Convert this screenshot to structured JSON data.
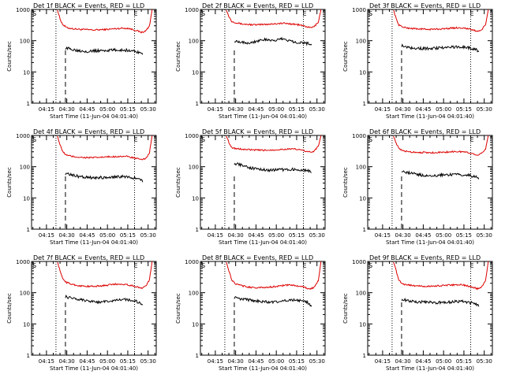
{
  "figure": {
    "xlabel": "Start Time (11-Jun-04 04:01:40)",
    "ylabel": "Counts/sec",
    "y_ticks": [
      "1",
      "10",
      "100",
      "1000"
    ],
    "x_ticks": [
      "04:15",
      "04:30",
      "04:45",
      "05:00",
      "05:15",
      "05:30"
    ],
    "start_marker": "S",
    "end_marker": "E"
  },
  "chart_data": [
    {
      "type": "line",
      "title": "Det 1f BLACK = Events, RED = LLD",
      "xlabel": "Start Time (11-Jun-04 04:01:40)",
      "ylabel": "Counts/sec",
      "yscale": "log",
      "ylim": [
        1,
        1000
      ],
      "xlim": [
        "04:04",
        "05:36"
      ],
      "x_ticks": [
        "04:15",
        "04:30",
        "04:45",
        "05:00",
        "05:15",
        "05:30"
      ],
      "y_ticks": [
        1,
        10,
        100,
        1000
      ],
      "start_line": "04:22",
      "end_line": "05:20",
      "dashed_line": "04:29",
      "series": [
        {
          "color": "#dd0000",
          "x": [
            "04:23",
            "04:25",
            "04:27",
            "04:30",
            "04:35",
            "04:40",
            "04:45",
            "04:50",
            "04:55",
            "05:00",
            "05:05",
            "05:10",
            "05:15",
            "05:20",
            "05:25",
            "05:28",
            "05:31",
            "05:33"
          ],
          "values": [
            1000,
            500,
            330,
            260,
            240,
            230,
            225,
            220,
            225,
            230,
            240,
            250,
            250,
            220,
            185,
            200,
            300,
            1000
          ]
        },
        {
          "color": "#000000",
          "x": [
            "04:29",
            "04:35",
            "04:40",
            "04:45",
            "04:50",
            "04:55",
            "05:00",
            "05:05",
            "05:10",
            "05:15",
            "05:20",
            "05:24",
            "05:26"
          ],
          "values": [
            58,
            52,
            48,
            46,
            47,
            48,
            49,
            50,
            50,
            49,
            46,
            42,
            36
          ]
        }
      ]
    },
    {
      "type": "line",
      "title": "Det 2f BLACK = Events, RED = LLD",
      "xlabel": "Start Time (11-Jun-04 04:01:40)",
      "ylabel": "Counts/sec",
      "yscale": "log",
      "ylim": [
        1,
        1000
      ],
      "xlim": [
        "04:04",
        "05:36"
      ],
      "x_ticks": [
        "04:15",
        "04:30",
        "04:45",
        "05:00",
        "05:15",
        "05:30"
      ],
      "y_ticks": [
        1,
        10,
        100,
        1000
      ],
      "start_line": "04:22",
      "end_line": "05:20",
      "dashed_line": "04:29",
      "series": [
        {
          "color": "#dd0000",
          "x": [
            "04:23",
            "04:25",
            "04:27",
            "04:30",
            "04:35",
            "04:40",
            "04:45",
            "04:50",
            "04:55",
            "05:00",
            "05:05",
            "05:10",
            "05:15",
            "05:20",
            "05:25",
            "05:28",
            "05:31",
            "05:33"
          ],
          "values": [
            1000,
            600,
            420,
            380,
            340,
            330,
            320,
            330,
            340,
            350,
            360,
            350,
            330,
            300,
            260,
            280,
            400,
            1000
          ]
        },
        {
          "color": "#000000",
          "x": [
            "04:29",
            "04:35",
            "04:40",
            "04:45",
            "04:50",
            "04:55",
            "05:00",
            "05:05",
            "05:10",
            "05:15",
            "05:20",
            "05:24",
            "05:26"
          ],
          "values": [
            100,
            90,
            85,
            95,
            110,
            100,
            105,
            115,
            100,
            90,
            85,
            80,
            78
          ]
        }
      ]
    },
    {
      "type": "line",
      "title": "Det 3f BLACK = Events, RED = LLD",
      "xlabel": "Start Time (11-Jun-04 04:01:40)",
      "ylabel": "Counts/sec",
      "yscale": "log",
      "ylim": [
        1,
        1000
      ],
      "xlim": [
        "04:04",
        "05:36"
      ],
      "x_ticks": [
        "04:15",
        "04:30",
        "04:45",
        "05:00",
        "05:15",
        "05:30"
      ],
      "y_ticks": [
        1,
        10,
        100,
        1000
      ],
      "start_line": "04:22",
      "end_line": "05:20",
      "dashed_line": "04:29",
      "series": [
        {
          "color": "#dd0000",
          "x": [
            "04:23",
            "04:25",
            "04:27",
            "04:30",
            "04:35",
            "04:40",
            "04:45",
            "04:50",
            "04:55",
            "05:00",
            "05:05",
            "05:10",
            "05:15",
            "05:20",
            "05:25",
            "05:28",
            "05:31",
            "05:33"
          ],
          "values": [
            1000,
            500,
            320,
            270,
            250,
            240,
            235,
            230,
            235,
            240,
            250,
            260,
            255,
            230,
            200,
            220,
            320,
            1000
          ]
        },
        {
          "color": "#000000",
          "x": [
            "04:29",
            "04:35",
            "04:40",
            "04:45",
            "04:50",
            "04:55",
            "05:00",
            "05:05",
            "05:10",
            "05:15",
            "05:20",
            "05:24",
            "05:26"
          ],
          "values": [
            70,
            60,
            58,
            56,
            57,
            58,
            60,
            62,
            63,
            62,
            58,
            52,
            44
          ]
        }
      ]
    },
    {
      "type": "line",
      "title": "Det 4f BLACK = Events, RED = LLD",
      "xlabel": "Start Time (11-Jun-04 04:01:40)",
      "ylabel": "Counts/sec",
      "yscale": "log",
      "ylim": [
        1,
        1000
      ],
      "xlim": [
        "04:04",
        "05:36"
      ],
      "x_ticks": [
        "04:15",
        "04:30",
        "04:45",
        "05:00",
        "05:15",
        "05:30"
      ],
      "y_ticks": [
        1,
        10,
        100,
        1000
      ],
      "start_line": "04:22",
      "end_line": "05:20",
      "dashed_line": "04:29",
      "series": [
        {
          "color": "#dd0000",
          "x": [
            "04:23",
            "04:25",
            "04:27",
            "04:30",
            "04:35",
            "04:40",
            "04:45",
            "04:50",
            "04:55",
            "05:00",
            "05:05",
            "05:10",
            "05:15",
            "05:20",
            "05:25",
            "05:28",
            "05:31",
            "05:33"
          ],
          "values": [
            1000,
            500,
            300,
            230,
            210,
            200,
            195,
            195,
            200,
            205,
            210,
            215,
            210,
            190,
            165,
            180,
            280,
            1000
          ]
        },
        {
          "color": "#000000",
          "x": [
            "04:29",
            "04:35",
            "04:40",
            "04:45",
            "04:50",
            "04:55",
            "05:00",
            "05:05",
            "05:10",
            "05:15",
            "05:20",
            "05:24",
            "05:26"
          ],
          "values": [
            60,
            52,
            48,
            45,
            44,
            45,
            46,
            47,
            48,
            47,
            44,
            40,
            32
          ]
        }
      ]
    },
    {
      "type": "line",
      "title": "Det 5f BLACK = Events, RED = LLD",
      "xlabel": "Start Time (11-Jun-04 04:01:40)",
      "ylabel": "Counts/sec",
      "yscale": "log",
      "ylim": [
        1,
        1000
      ],
      "xlim": [
        "04:04",
        "05:36"
      ],
      "x_ticks": [
        "04:15",
        "04:30",
        "04:45",
        "05:00",
        "05:15",
        "05:30"
      ],
      "y_ticks": [
        1,
        10,
        100,
        1000
      ],
      "start_line": "04:22",
      "end_line": "05:20",
      "dashed_line": "04:29",
      "series": [
        {
          "color": "#dd0000",
          "x": [
            "04:23",
            "04:25",
            "04:27",
            "04:30",
            "04:35",
            "04:40",
            "04:45",
            "04:50",
            "04:55",
            "05:00",
            "05:05",
            "05:10",
            "05:15",
            "05:20",
            "05:25",
            "05:28",
            "05:31",
            "05:33"
          ],
          "values": [
            1000,
            600,
            420,
            380,
            360,
            350,
            340,
            335,
            340,
            350,
            360,
            370,
            360,
            330,
            290,
            320,
            450,
            1000
          ]
        },
        {
          "color": "#000000",
          "x": [
            "04:29",
            "04:35",
            "04:40",
            "04:45",
            "04:50",
            "04:55",
            "05:00",
            "05:05",
            "05:10",
            "05:15",
            "05:20",
            "05:24",
            "05:26"
          ],
          "values": [
            130,
            110,
            95,
            85,
            80,
            78,
            78,
            80,
            82,
            82,
            78,
            72,
            65
          ]
        }
      ]
    },
    {
      "type": "line",
      "title": "Det 6f BLACK = Events, RED = LLD",
      "xlabel": "Start Time (11-Jun-04 04:01:40)",
      "ylabel": "Counts/sec",
      "yscale": "log",
      "ylim": [
        1,
        1000
      ],
      "xlim": [
        "04:04",
        "05:36"
      ],
      "x_ticks": [
        "04:15",
        "04:30",
        "04:45",
        "05:00",
        "05:15",
        "05:30"
      ],
      "y_ticks": [
        1,
        10,
        100,
        1000
      ],
      "start_line": "04:22",
      "end_line": "05:20",
      "dashed_line": "04:29",
      "series": [
        {
          "color": "#dd0000",
          "x": [
            "04:23",
            "04:25",
            "04:27",
            "04:30",
            "04:35",
            "04:40",
            "04:45",
            "04:50",
            "04:55",
            "05:00",
            "05:05",
            "05:10",
            "05:15",
            "05:20",
            "05:25",
            "05:28",
            "05:31",
            "05:33"
          ],
          "values": [
            1000,
            550,
            380,
            320,
            300,
            290,
            285,
            280,
            285,
            290,
            300,
            305,
            300,
            270,
            240,
            260,
            380,
            1000
          ]
        },
        {
          "color": "#000000",
          "x": [
            "04:29",
            "04:35",
            "04:40",
            "04:45",
            "04:50",
            "04:55",
            "05:00",
            "05:05",
            "05:10",
            "05:15",
            "05:20",
            "05:24",
            "05:26"
          ],
          "values": [
            75,
            62,
            56,
            53,
            52,
            53,
            54,
            56,
            57,
            56,
            52,
            47,
            40
          ]
        }
      ]
    },
    {
      "type": "line",
      "title": "Det 7f BLACK = Events, RED = LLD",
      "xlabel": "Start Time (11-Jun-04 04:01:40)",
      "ylabel": "Counts/sec",
      "yscale": "log",
      "ylim": [
        1,
        1000
      ],
      "xlim": [
        "04:04",
        "05:36"
      ],
      "x_ticks": [
        "04:15",
        "04:30",
        "04:45",
        "05:00",
        "05:15",
        "05:30"
      ],
      "y_ticks": [
        1,
        10,
        100,
        1000
      ],
      "start_line": "04:22",
      "end_line": "05:20",
      "dashed_line": "04:29",
      "series": [
        {
          "color": "#dd0000",
          "x": [
            "04:23",
            "04:25",
            "04:27",
            "04:30",
            "04:35",
            "04:40",
            "04:45",
            "04:50",
            "04:55",
            "05:00",
            "05:05",
            "05:10",
            "05:15",
            "05:20",
            "05:25",
            "05:28",
            "05:31",
            "05:33"
          ],
          "values": [
            1000,
            500,
            280,
            210,
            180,
            165,
            160,
            160,
            165,
            175,
            185,
            190,
            180,
            160,
            140,
            160,
            260,
            1000
          ]
        },
        {
          "color": "#000000",
          "x": [
            "04:29",
            "04:35",
            "04:40",
            "04:45",
            "04:50",
            "04:55",
            "05:00",
            "05:05",
            "05:10",
            "05:15",
            "05:20",
            "05:24",
            "05:26"
          ],
          "values": [
            75,
            65,
            60,
            55,
            52,
            50,
            52,
            55,
            58,
            60,
            55,
            48,
            42
          ]
        }
      ]
    },
    {
      "type": "line",
      "title": "Det 8f BLACK = Events, RED = LLD",
      "xlabel": "Start Time (11-Jun-04 04:01:40)",
      "ylabel": "Counts/sec",
      "yscale": "log",
      "ylim": [
        1,
        1000
      ],
      "xlim": [
        "04:04",
        "05:36"
      ],
      "x_ticks": [
        "04:15",
        "04:30",
        "04:45",
        "05:00",
        "05:15",
        "05:30"
      ],
      "y_ticks": [
        1,
        10,
        100,
        1000
      ],
      "start_line": "04:22",
      "end_line": "05:20",
      "dashed_line": "04:29",
      "series": [
        {
          "color": "#dd0000",
          "x": [
            "04:23",
            "04:25",
            "04:27",
            "04:30",
            "04:35",
            "04:40",
            "04:45",
            "04:50",
            "04:55",
            "05:00",
            "05:05",
            "05:10",
            "05:15",
            "05:20",
            "05:25",
            "05:28",
            "05:31",
            "05:33"
          ],
          "values": [
            1000,
            500,
            260,
            190,
            165,
            150,
            145,
            145,
            150,
            160,
            170,
            175,
            170,
            150,
            130,
            150,
            250,
            1000
          ]
        },
        {
          "color": "#000000",
          "x": [
            "04:29",
            "04:35",
            "04:40",
            "04:45",
            "04:50",
            "04:55",
            "05:00",
            "05:05",
            "05:10",
            "05:15",
            "05:20",
            "05:24",
            "05:26"
          ],
          "values": [
            70,
            62,
            58,
            54,
            52,
            50,
            52,
            54,
            57,
            58,
            54,
            46,
            36
          ]
        }
      ]
    },
    {
      "type": "line",
      "title": "Det 9f BLACK = Events, RED = LLD",
      "xlabel": "Start Time (11-Jun-04 04:01:40)",
      "ylabel": "Counts/sec",
      "yscale": "log",
      "ylim": [
        1,
        1000
      ],
      "xlim": [
        "04:04",
        "05:36"
      ],
      "x_ticks": [
        "04:15",
        "04:30",
        "04:45",
        "05:00",
        "05:15",
        "05:30"
      ],
      "y_ticks": [
        1,
        10,
        100,
        1000
      ],
      "start_line": "04:22",
      "end_line": "05:20",
      "dashed_line": "04:29",
      "series": [
        {
          "color": "#dd0000",
          "x": [
            "04:23",
            "04:25",
            "04:27",
            "04:30",
            "04:35",
            "04:40",
            "04:45",
            "04:50",
            "04:55",
            "05:00",
            "05:05",
            "05:10",
            "05:15",
            "05:20",
            "05:25",
            "05:28",
            "05:31",
            "05:33"
          ],
          "values": [
            1000,
            500,
            250,
            190,
            175,
            165,
            160,
            160,
            165,
            170,
            175,
            180,
            175,
            155,
            135,
            150,
            250,
            1000
          ]
        },
        {
          "color": "#000000",
          "x": [
            "04:29",
            "04:35",
            "04:40",
            "04:45",
            "04:50",
            "04:55",
            "05:00",
            "05:05",
            "05:10",
            "05:15",
            "05:20",
            "05:24",
            "05:26"
          ],
          "values": [
            62,
            55,
            52,
            50,
            49,
            48,
            49,
            50,
            52,
            52,
            48,
            42,
            36
          ]
        }
      ]
    }
  ]
}
